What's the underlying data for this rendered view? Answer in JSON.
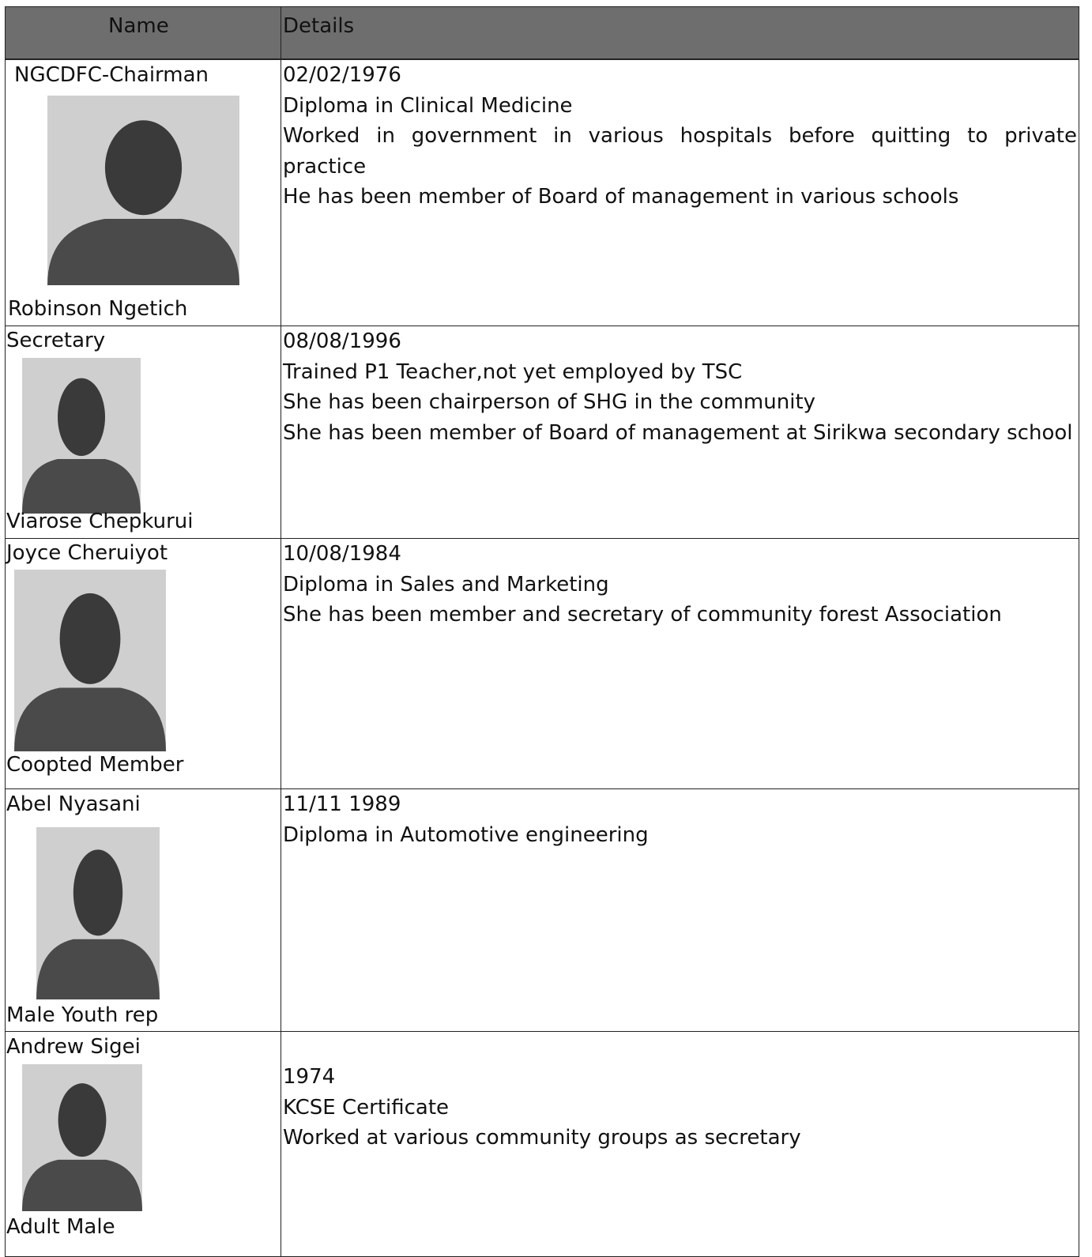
{
  "header": {
    "name": "Name",
    "details": "Details"
  },
  "rows": [
    {
      "top": "NGCDFC-Chairman",
      "bottom": "Robinson Ngetich",
      "details": [
        "02/02/1976",
        "Diploma in Clinical Medicine",
        "Worked in government in various hospitals before quitting to private practice",
        "He has been member of Board of management in various schools"
      ]
    },
    {
      "top": "Secretary",
      "bottom": "Viarose Chepkurui",
      "details": [
        "08/08/1996",
        "Trained P1 Teacher,not yet employed by TSC",
        "She has been chairperson of  SHG in the community",
        "She has been member of Board of management at Sirikwa secondary school"
      ]
    },
    {
      "top": "Joyce Cheruiyot",
      "bottom": "Coopted Member",
      "details": [
        "10/08/1984",
        "Diploma in Sales and Marketing",
        "She has been member and secretary of community forest Association"
      ]
    },
    {
      "top": "Abel Nyasani",
      "bottom": "Male Youth rep",
      "details": [
        "11/11 1989",
        "Diploma in Automotive engineering"
      ]
    },
    {
      "top": "Andrew Sigei",
      "bottom": "Adult Male",
      "details": [
        "1974",
        "KCSE Certificate",
        "Worked at various community groups as secretary"
      ]
    }
  ]
}
